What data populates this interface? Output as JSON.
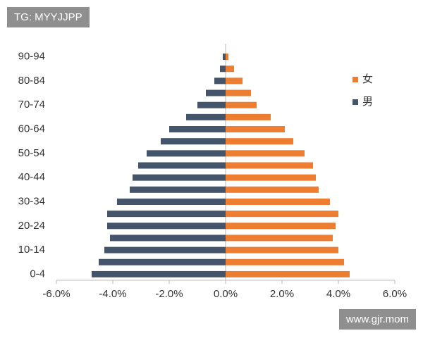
{
  "chart_data": {
    "type": "bar",
    "orientation": "horizontal",
    "categories": [
      "0-4",
      null,
      "10-14",
      null,
      "20-24",
      null,
      "30-34",
      null,
      "40-44",
      null,
      "50-54",
      null,
      "60-64",
      null,
      "70-74",
      null,
      "80-84",
      null,
      "90-94"
    ],
    "series": [
      {
        "name": "女",
        "color": "#ed7d31",
        "values": [
          4.4,
          4.2,
          4.0,
          3.8,
          3.9,
          4.0,
          3.7,
          3.3,
          3.2,
          3.1,
          2.8,
          2.4,
          2.1,
          1.6,
          1.1,
          0.9,
          0.6,
          0.3,
          0.1
        ]
      },
      {
        "name": "男",
        "color": "#44546a",
        "values": [
          -4.75,
          -4.5,
          -4.3,
          -4.1,
          -4.2,
          -4.2,
          -3.85,
          -3.4,
          -3.3,
          -3.1,
          -2.8,
          -2.3,
          -2.0,
          -1.4,
          -1.0,
          -0.7,
          -0.4,
          -0.2,
          -0.1
        ]
      }
    ],
    "xlim": [
      -6,
      6
    ],
    "xticks": [
      {
        "value": -6,
        "label": "-6.0%"
      },
      {
        "value": -4,
        "label": "-4.0%"
      },
      {
        "value": -2,
        "label": "-2.0%"
      },
      {
        "value": 0,
        "label": "0.0%"
      },
      {
        "value": 2,
        "label": "2.0%"
      },
      {
        "value": 4,
        "label": "4.0%"
      },
      {
        "value": 6,
        "label": "6.0%"
      }
    ],
    "legend": "right",
    "grid": false
  },
  "watermarks": {
    "top": "TG: MYYJJPP",
    "bottom": "www.gjr.mom"
  }
}
